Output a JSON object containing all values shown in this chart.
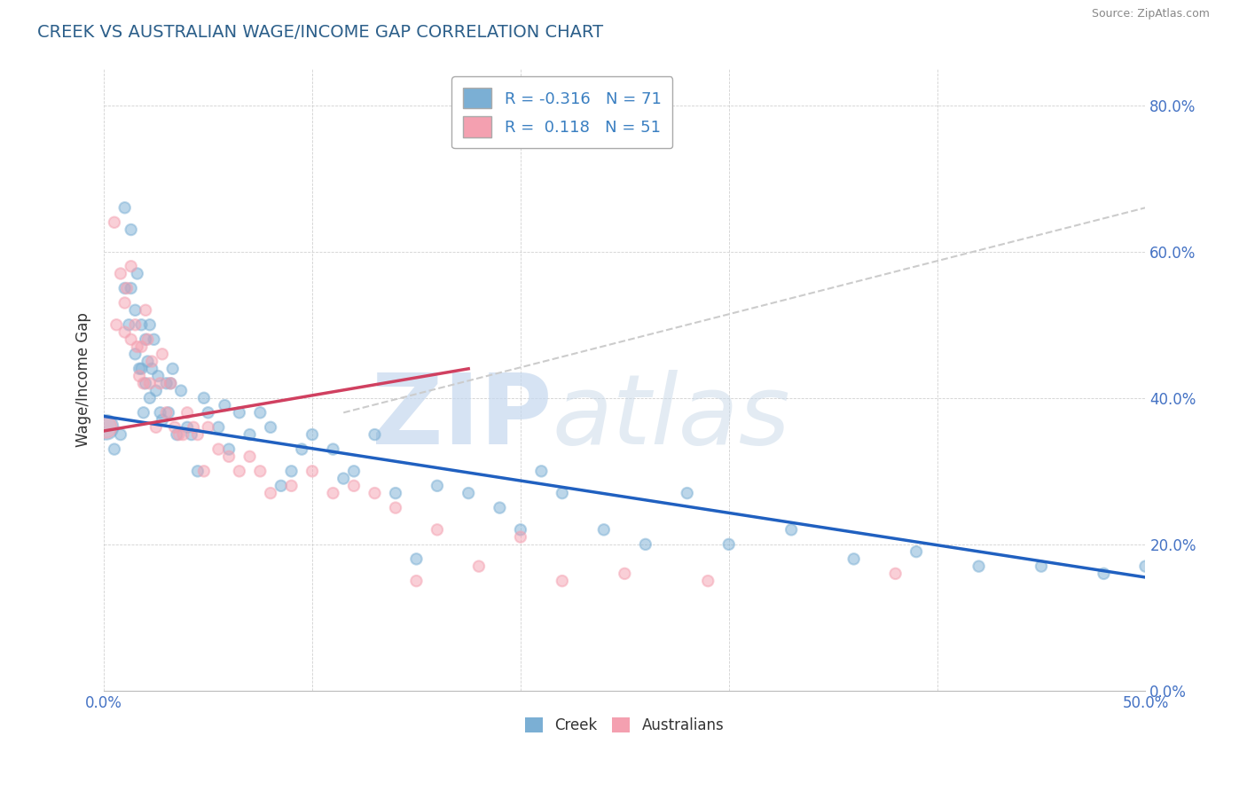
{
  "title": "CREEK VS AUSTRALIAN WAGE/INCOME GAP CORRELATION CHART",
  "source": "Source: ZipAtlas.com",
  "ylabel": "Wage/Income Gap",
  "xlim": [
    0.0,
    0.5
  ],
  "ylim": [
    0.0,
    0.85
  ],
  "x_tick_labels": [
    "0.0%",
    "50.0%"
  ],
  "x_tick_positions": [
    0.0,
    0.5
  ],
  "y_ticks": [
    0.0,
    0.2,
    0.4,
    0.6,
    0.8
  ],
  "y_tick_labels": [
    "0.0%",
    "20.0%",
    "40.0%",
    "60.0%",
    "80.0%"
  ],
  "creek_color": "#7bafd4",
  "australian_color": "#f4a0b0",
  "creek_line_color": "#2060c0",
  "australian_line_color": "#d04060",
  "dashed_line_color": "#cccccc",
  "creek_R": -0.316,
  "creek_N": 71,
  "australian_R": 0.118,
  "australian_N": 51,
  "title_color": "#2c5f8a",
  "legend_label_creek": "Creek",
  "legend_label_australian": "Australians",
  "creek_scatter_x": [
    0.001,
    0.005,
    0.008,
    0.01,
    0.01,
    0.012,
    0.013,
    0.013,
    0.015,
    0.015,
    0.016,
    0.017,
    0.018,
    0.018,
    0.019,
    0.02,
    0.02,
    0.021,
    0.022,
    0.022,
    0.023,
    0.024,
    0.025,
    0.026,
    0.027,
    0.028,
    0.03,
    0.031,
    0.032,
    0.033,
    0.035,
    0.037,
    0.04,
    0.042,
    0.045,
    0.048,
    0.05,
    0.055,
    0.058,
    0.06,
    0.065,
    0.07,
    0.075,
    0.08,
    0.085,
    0.09,
    0.095,
    0.1,
    0.11,
    0.115,
    0.12,
    0.13,
    0.14,
    0.15,
    0.16,
    0.175,
    0.19,
    0.2,
    0.21,
    0.22,
    0.24,
    0.26,
    0.28,
    0.3,
    0.33,
    0.36,
    0.39,
    0.42,
    0.45,
    0.48,
    0.5
  ],
  "creek_scatter_y": [
    0.36,
    0.33,
    0.35,
    0.66,
    0.55,
    0.5,
    0.63,
    0.55,
    0.52,
    0.46,
    0.57,
    0.44,
    0.5,
    0.44,
    0.38,
    0.48,
    0.42,
    0.45,
    0.5,
    0.4,
    0.44,
    0.48,
    0.41,
    0.43,
    0.38,
    0.37,
    0.42,
    0.38,
    0.42,
    0.44,
    0.35,
    0.41,
    0.36,
    0.35,
    0.3,
    0.4,
    0.38,
    0.36,
    0.39,
    0.33,
    0.38,
    0.35,
    0.38,
    0.36,
    0.28,
    0.3,
    0.33,
    0.35,
    0.33,
    0.29,
    0.3,
    0.35,
    0.27,
    0.18,
    0.28,
    0.27,
    0.25,
    0.22,
    0.3,
    0.27,
    0.22,
    0.2,
    0.27,
    0.2,
    0.22,
    0.18,
    0.19,
    0.17,
    0.17,
    0.16,
    0.17
  ],
  "australian_scatter_x": [
    0.001,
    0.005,
    0.006,
    0.008,
    0.01,
    0.01,
    0.011,
    0.013,
    0.013,
    0.015,
    0.016,
    0.017,
    0.018,
    0.019,
    0.02,
    0.021,
    0.022,
    0.023,
    0.025,
    0.027,
    0.028,
    0.03,
    0.032,
    0.034,
    0.036,
    0.038,
    0.04,
    0.043,
    0.045,
    0.048,
    0.05,
    0.055,
    0.06,
    0.065,
    0.07,
    0.075,
    0.08,
    0.09,
    0.1,
    0.11,
    0.12,
    0.13,
    0.14,
    0.15,
    0.16,
    0.18,
    0.2,
    0.22,
    0.25,
    0.29,
    0.38
  ],
  "australian_scatter_y": [
    0.36,
    0.64,
    0.5,
    0.57,
    0.53,
    0.49,
    0.55,
    0.48,
    0.58,
    0.5,
    0.47,
    0.43,
    0.47,
    0.42,
    0.52,
    0.48,
    0.42,
    0.45,
    0.36,
    0.42,
    0.46,
    0.38,
    0.42,
    0.36,
    0.35,
    0.35,
    0.38,
    0.36,
    0.35,
    0.3,
    0.36,
    0.33,
    0.32,
    0.3,
    0.32,
    0.3,
    0.27,
    0.28,
    0.3,
    0.27,
    0.28,
    0.27,
    0.25,
    0.15,
    0.22,
    0.17,
    0.21,
    0.15,
    0.16,
    0.15,
    0.16
  ],
  "watermark_zip": "ZIP",
  "watermark_atlas": "atlas",
  "background_color": "#ffffff",
  "grid_color": "#cccccc",
  "creek_trend_x": [
    0.0,
    0.5
  ],
  "creek_trend_y": [
    0.375,
    0.155
  ],
  "aus_pink_trend_x": [
    0.0,
    0.175
  ],
  "aus_pink_trend_y": [
    0.355,
    0.44
  ],
  "aus_dashed_trend_x": [
    0.115,
    0.5
  ],
  "aus_dashed_trend_y": [
    0.38,
    0.66
  ]
}
